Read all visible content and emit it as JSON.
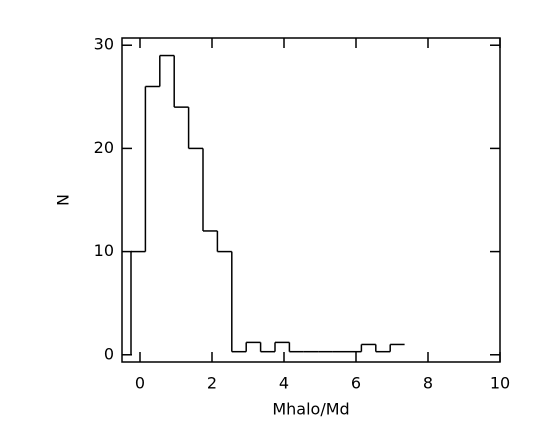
{
  "chart_data": {
    "type": "histogram",
    "x_label": "Mhalo/Md",
    "y_label": "N",
    "bins": [
      -0.25,
      0.15,
      0.55,
      0.95,
      1.35,
      1.75,
      2.15,
      2.55,
      2.95,
      3.35,
      3.75,
      4.15,
      4.55,
      4.95,
      5.35,
      5.75,
      6.15,
      6.55,
      6.95,
      7.35
    ],
    "values": [
      10,
      26,
      29,
      24,
      20,
      12,
      10,
      0.3,
      1.2,
      0.3,
      1.2,
      0.3,
      0.3,
      0.3,
      0.3,
      0.3,
      1,
      0.3,
      1
    ],
    "color": "#000000",
    "xlim": [
      -0.5,
      10
    ],
    "xticks": [
      0,
      2,
      4,
      6,
      8,
      10
    ],
    "ylim": [
      -0.7,
      30.7
    ],
    "yticks": [
      0,
      10,
      20,
      30
    ]
  }
}
